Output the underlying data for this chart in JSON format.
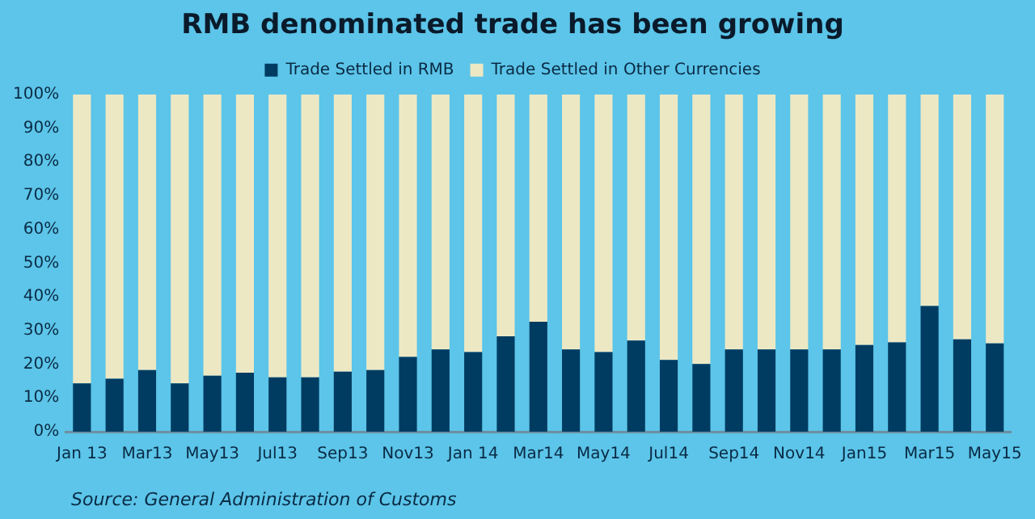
{
  "chart_data": {
    "type": "bar",
    "title": "RMB denominated trade has been growing",
    "stacked": true,
    "legend": "top",
    "grid": false,
    "categories": [
      "Jan 13",
      null,
      "Mar13",
      null,
      "May13",
      null,
      "Jul13",
      null,
      "Sep13",
      null,
      "Nov13",
      null,
      "Jan 14",
      null,
      "Mar14",
      null,
      "May14",
      null,
      "Jul14",
      null,
      "Sep14",
      null,
      "Nov14",
      null,
      "Jan15",
      null,
      "Mar15",
      null,
      "May15"
    ],
    "series": [
      {
        "name": "Trade Settled in RMB",
        "color": "#003c62",
        "values": [
          14.3,
          15.7,
          18.3,
          14.3,
          16.6,
          17.5,
          16.1,
          16.1,
          17.8,
          18.3,
          22.2,
          24.4,
          23.6,
          28.3,
          32.6,
          24.4,
          23.6,
          27,
          21.3,
          20.1,
          24.4,
          24.4,
          24.4,
          24.4,
          25.7,
          26.5,
          37.3,
          27.4,
          26.2
        ]
      },
      {
        "name": "Trade Settled in Other Currencies",
        "color": "#ede8c4",
        "values": [
          85.7,
          84.3,
          81.7,
          85.7,
          83.4,
          82.5,
          83.9,
          83.9,
          82.2,
          81.7,
          77.8,
          75.6,
          76.4,
          71.7,
          67.4,
          75.6,
          76.4,
          73,
          78.7,
          79.9,
          75.6,
          75.6,
          75.6,
          75.6,
          74.3,
          73.5,
          62.7,
          72.6,
          73.8
        ]
      }
    ],
    "ylim": [
      0,
      100
    ],
    "yticks": [
      {
        "value": 0,
        "label": "0%"
      },
      {
        "value": 10,
        "label": "10%"
      },
      {
        "value": 20,
        "label": "20%"
      },
      {
        "value": 30,
        "label": "30%"
      },
      {
        "value": 40,
        "label": "40%"
      },
      {
        "value": 50,
        "label": "50%"
      },
      {
        "value": 60,
        "label": "60%"
      },
      {
        "value": 70,
        "label": "70%"
      },
      {
        "value": 80,
        "label": "80%"
      },
      {
        "value": 90,
        "label": "90%"
      },
      {
        "value": 100,
        "label": "100%"
      }
    ],
    "annotations": [
      "Source: General Administration of Customs"
    ]
  }
}
